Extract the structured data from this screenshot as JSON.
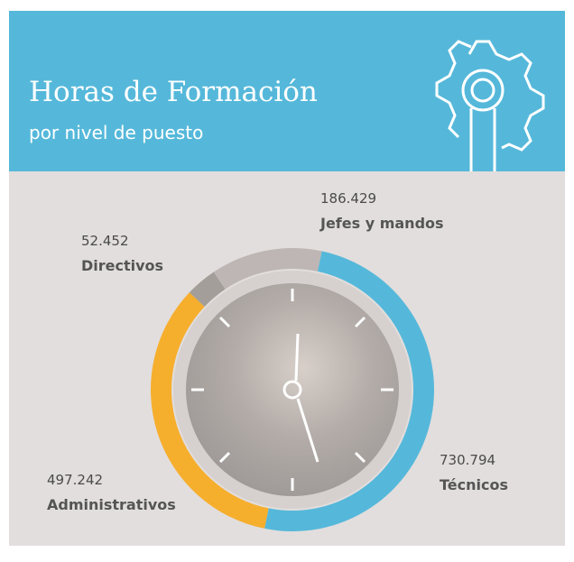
{
  "chart_data": {
    "type": "pie",
    "title": "Horas de Formación",
    "subtitle": "por nivel de puesto",
    "categories": [
      "Técnicos",
      "Administrativos",
      "Directivos",
      "Jefes y mandos"
    ],
    "values": [
      730794,
      497242,
      52452,
      186429
    ],
    "value_labels": [
      "730.794",
      "497.242",
      "52.452",
      "186.429"
    ],
    "colors": [
      "#55b8da",
      "#f6ae2d",
      "#a39e99",
      "#bdb6b4"
    ]
  }
}
